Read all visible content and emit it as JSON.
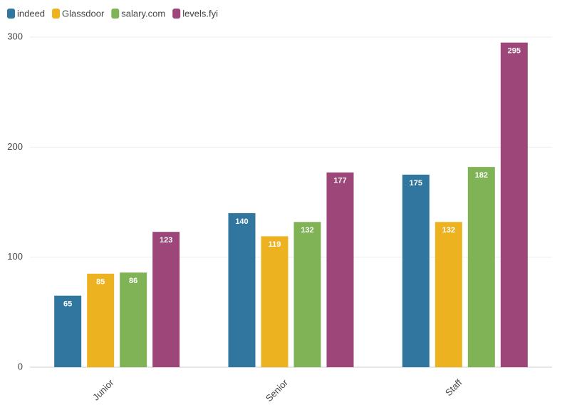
{
  "chart_data": {
    "type": "bar",
    "categories": [
      "Junior",
      "Senior",
      "Staff"
    ],
    "series": [
      {
        "name": "indeed",
        "color": "#31769e",
        "values": [
          65,
          140,
          175
        ]
      },
      {
        "name": "Glassdoor",
        "color": "#edb21f",
        "values": [
          85,
          119,
          132
        ]
      },
      {
        "name": "salary.com",
        "color": "#7fb356",
        "values": [
          86,
          132,
          182
        ]
      },
      {
        "name": "levels.fyi",
        "color": "#9d4679",
        "values": [
          123,
          177,
          295
        ]
      }
    ],
    "ylim": [
      0,
      300
    ],
    "yticks": [
      0,
      100,
      200,
      300
    ],
    "grid": true,
    "legend": "top-left"
  }
}
